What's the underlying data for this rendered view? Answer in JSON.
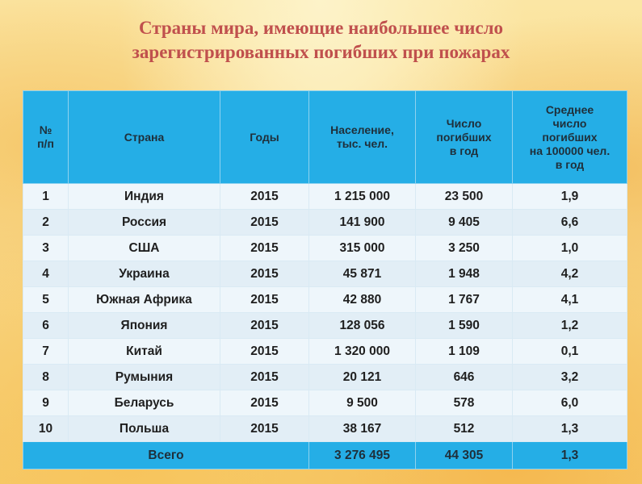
{
  "title": {
    "line1": "Страны мира, имеющие наибольшее число",
    "line2": "зарегистрированных погибших при пожарах"
  },
  "table": {
    "headers": [
      {
        "l1": "№",
        "l2": "п/п",
        "l3": "",
        "l4": "",
        "l5": ""
      },
      {
        "l1": "Страна",
        "l2": "",
        "l3": "",
        "l4": "",
        "l5": ""
      },
      {
        "l1": "Годы",
        "l2": "",
        "l3": "",
        "l4": "",
        "l5": ""
      },
      {
        "l1": "Население,",
        "l2": "тыс. чел.",
        "l3": "",
        "l4": "",
        "l5": ""
      },
      {
        "l1": "Число",
        "l2": "погибших",
        "l3": "в год",
        "l4": "",
        "l5": ""
      },
      {
        "l1": "Среднее",
        "l2": "число",
        "l3": "погибших",
        "l4": "на 100000 чел.",
        "l5": "в год"
      }
    ],
    "rows": [
      [
        "1",
        "Индия",
        "2015",
        "1 215 000",
        "23 500",
        "1,9"
      ],
      [
        "2",
        "Россия",
        "2015",
        "141 900",
        "9 405",
        "6,6"
      ],
      [
        "3",
        "США",
        "2015",
        "315 000",
        "3 250",
        "1,0"
      ],
      [
        "4",
        "Украина",
        "2015",
        "45 871",
        "1 948",
        "4,2"
      ],
      [
        "5",
        "Южная Африка",
        "2015",
        "42 880",
        "1 767",
        "4,1"
      ],
      [
        "6",
        "Япония",
        "2015",
        "128 056",
        "1 590",
        "1,2"
      ],
      [
        "7",
        "Китай",
        "2015",
        "1 320 000",
        "1 109",
        "0,1"
      ],
      [
        "8",
        "Румыния",
        "2015",
        "20 121",
        "646",
        "3,2"
      ],
      [
        "9",
        "Беларусь",
        "2015",
        "9 500",
        "578",
        "6,0"
      ],
      [
        "10",
        "Польша",
        "2015",
        "38 167",
        "512",
        "1,3"
      ]
    ],
    "total": {
      "label": "Всего",
      "population": "3 276 495",
      "deaths": "44 305",
      "average": "1,3"
    }
  }
}
